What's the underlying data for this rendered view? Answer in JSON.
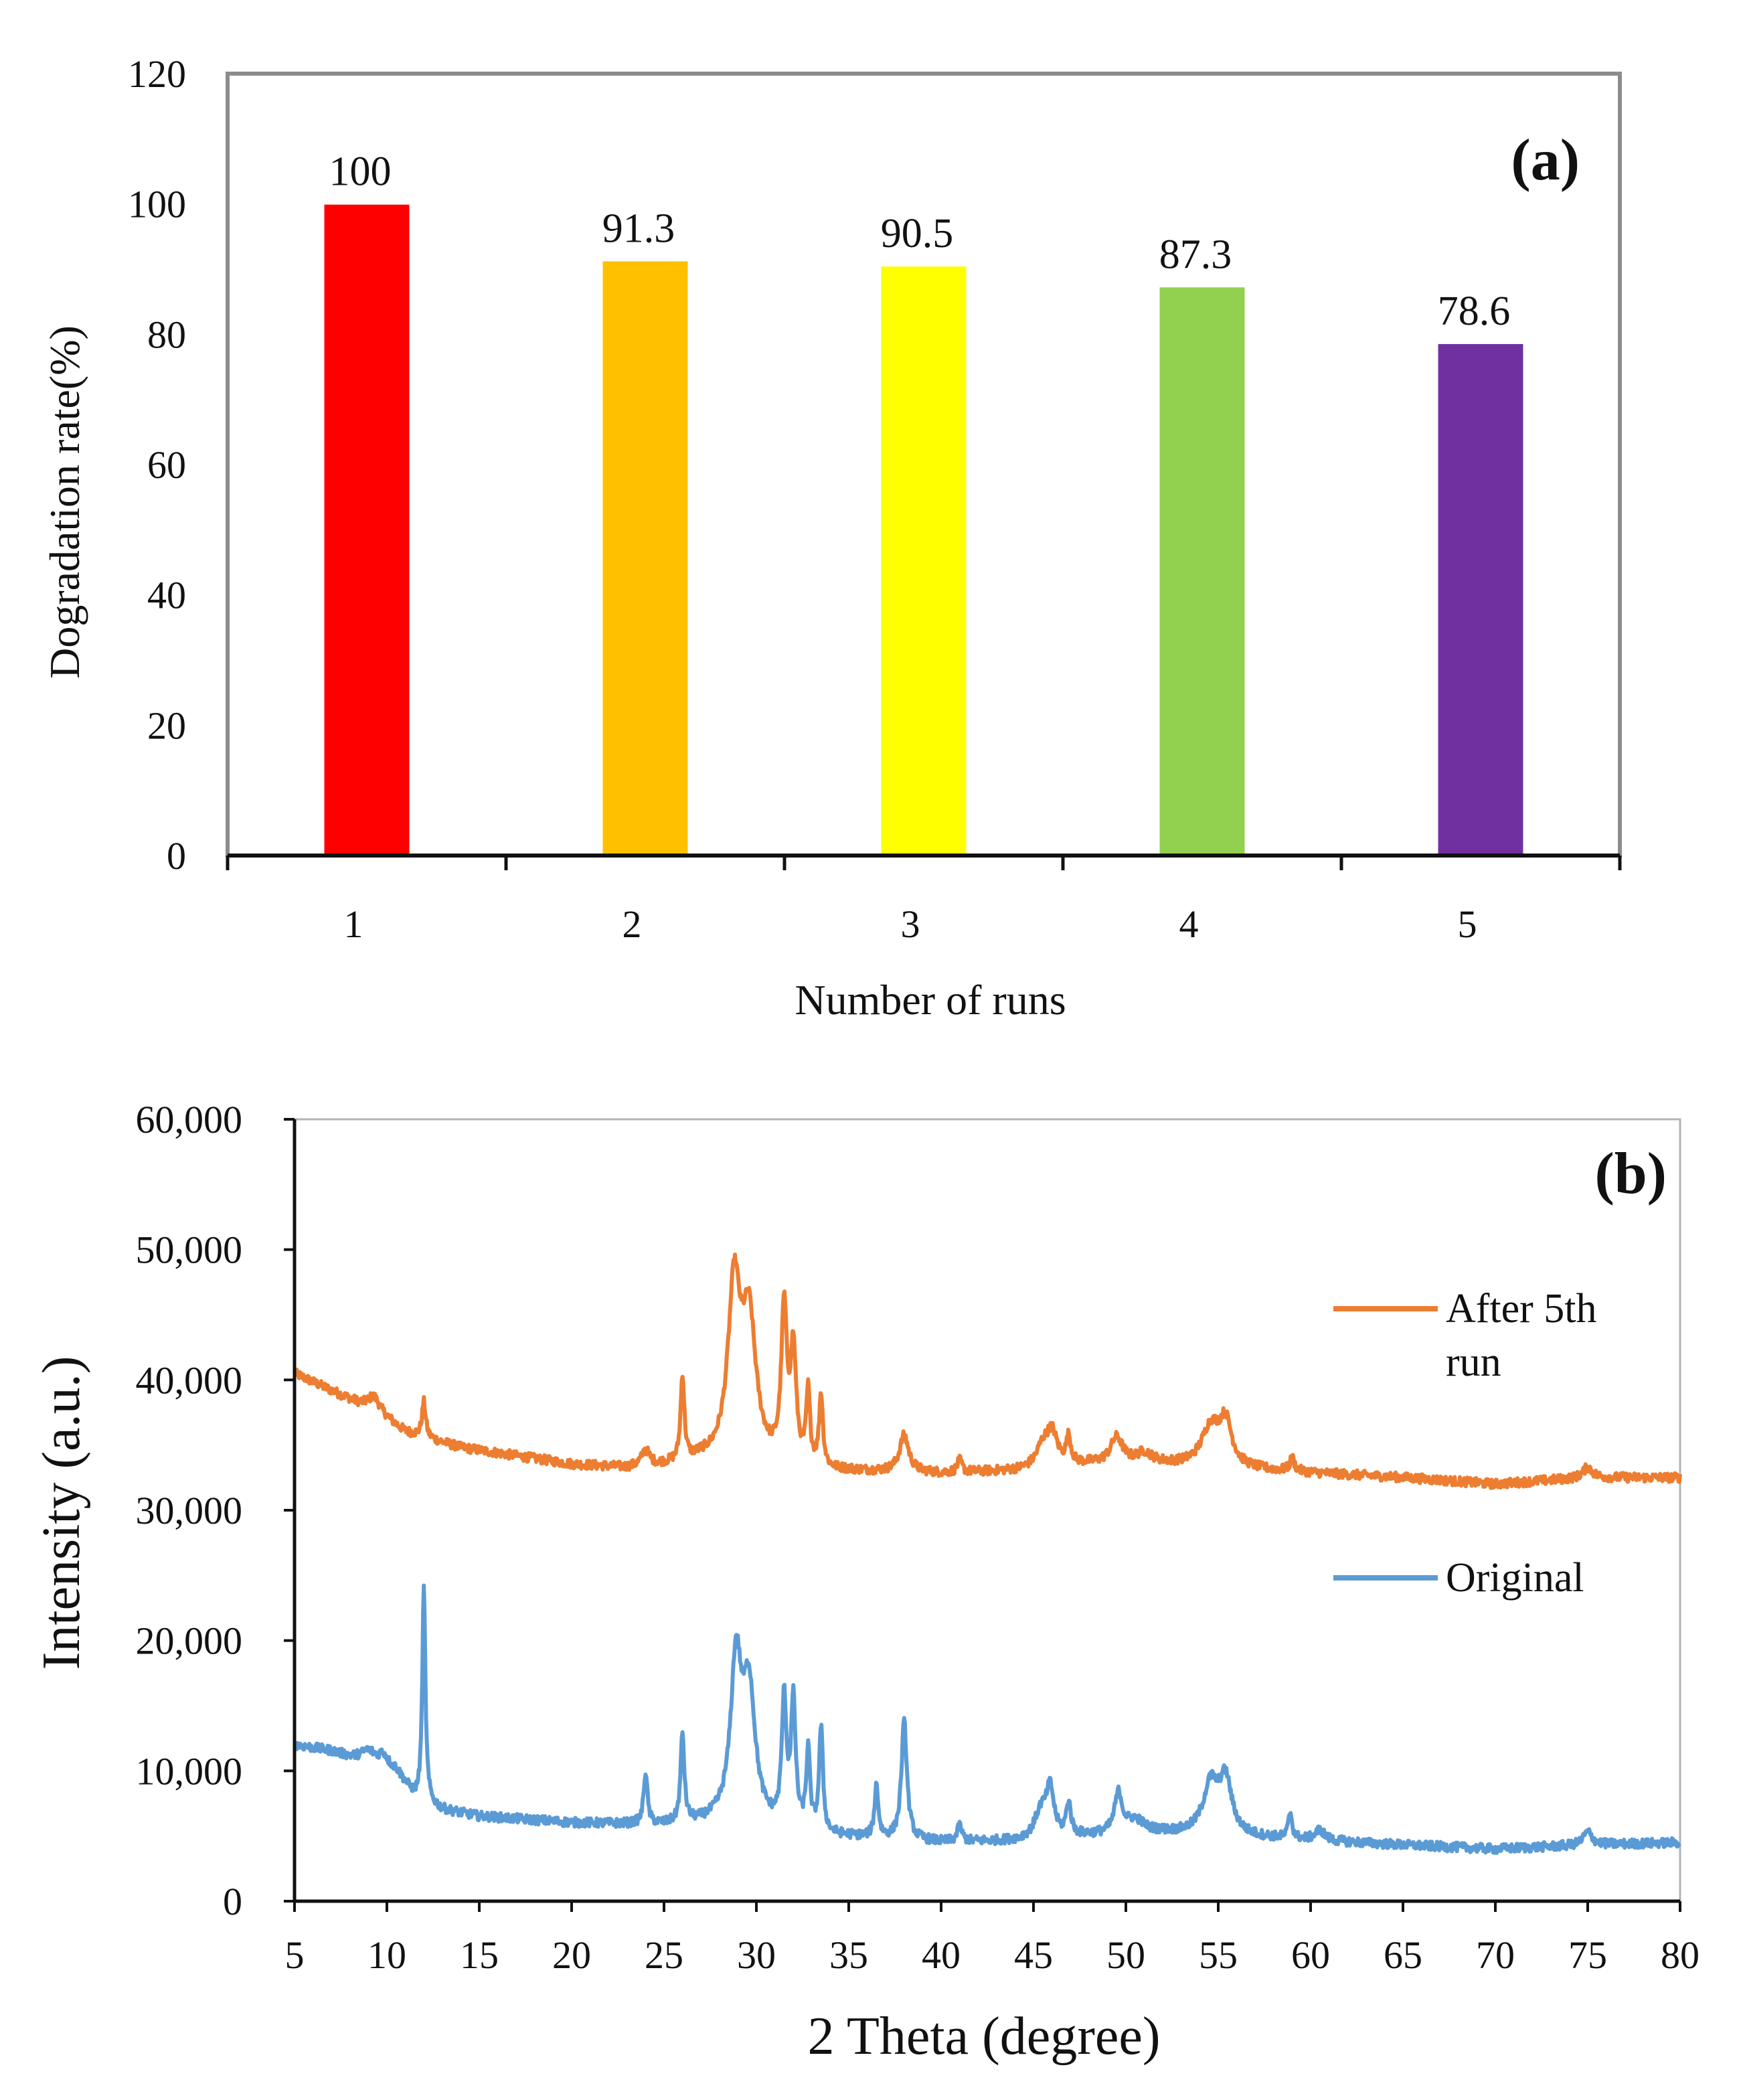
{
  "chart_data": [
    {
      "panel": "(a)",
      "type": "bar",
      "xlabel": "Number of runs",
      "ylabel": "Dogradation rate(%)",
      "categories": [
        "1",
        "2",
        "3",
        "4",
        "5"
      ],
      "values": [
        100,
        91.3,
        90.5,
        87.3,
        78.6
      ],
      "value_labels": [
        "100",
        "91.3",
        "90.5",
        "87.3",
        "78.6"
      ],
      "colors": [
        "#ff0000",
        "#ffc000",
        "#ffff00",
        "#92d050",
        "#7030a0"
      ],
      "ylim": [
        0,
        120
      ],
      "yticks": [
        0,
        20,
        40,
        60,
        80,
        100,
        120
      ],
      "ytick_labels": [
        "0",
        "20",
        "40",
        "60",
        "80",
        "100",
        "120"
      ],
      "grid": false
    },
    {
      "panel": "(b)",
      "type": "line",
      "xlabel": "2 Theta (degree)",
      "ylabel": "Intensity (a.u.)",
      "xlim": [
        5,
        80
      ],
      "ylim": [
        0,
        60000
      ],
      "xticks": [
        5,
        10,
        15,
        20,
        25,
        30,
        35,
        40,
        45,
        50,
        55,
        60,
        65,
        70,
        75,
        80
      ],
      "xtick_labels": [
        "5",
        "10",
        "15",
        "20",
        "25",
        "30",
        "35",
        "40",
        "45",
        "50",
        "55",
        "60",
        "65",
        "70",
        "75",
        "80"
      ],
      "yticks": [
        0,
        10000,
        20000,
        30000,
        40000,
        50000,
        60000
      ],
      "ytick_labels": [
        "0",
        "10,000",
        "20,000",
        "30,000",
        "40,000",
        "50,000",
        "60,000"
      ],
      "legend_position": "right",
      "series": [
        {
          "name": "After 5th run",
          "legend_lines": [
            "After 5th",
            "run"
          ],
          "color": "#ed7d31",
          "baseline": [
            [
              5,
              40500
            ],
            [
              8,
              38500
            ],
            [
              10,
              37000
            ],
            [
              11,
              36000
            ],
            [
              14,
              34800
            ],
            [
              20,
              33500
            ],
            [
              23,
              33200
            ],
            [
              26,
              33500
            ],
            [
              27,
              33800
            ],
            [
              34,
              33000
            ],
            [
              40,
              32800
            ],
            [
              44,
              33000
            ],
            [
              48,
              33500
            ],
            [
              52,
              33500
            ],
            [
              58,
              33000
            ],
            [
              65,
              32500
            ],
            [
              70,
              32000
            ],
            [
              75,
              32500
            ],
            [
              80,
              32500
            ]
          ],
          "peaks": [
            [
              9.3,
              1200,
              0.4
            ],
            [
              12,
              2700,
              0.12
            ],
            [
              24,
              1200,
              0.25
            ],
            [
              26,
              6600,
              0.12
            ],
            [
              28.8,
              13000,
              0.4
            ],
            [
              29.6,
              10500,
              0.45
            ],
            [
              31.5,
              11500,
              0.18
            ],
            [
              32,
              8500,
              0.18
            ],
            [
              32.8,
              5500,
              0.12
            ],
            [
              33.5,
              5500,
              0.12
            ],
            [
              38,
              2800,
              0.3
            ],
            [
              41,
              900,
              0.15
            ],
            [
              45.5,
              1500,
              0.4
            ],
            [
              46,
              2500,
              0.35
            ],
            [
              46.9,
              2000,
              0.15
            ],
            [
              49.5,
              2000,
              0.4
            ],
            [
              51,
              800,
              0.5
            ],
            [
              54.6,
              3000,
              0.6
            ],
            [
              55.4,
              3200,
              0.4
            ],
            [
              59,
              1000,
              0.15
            ],
            [
              75,
              800,
              0.3
            ]
          ],
          "noise": 350
        },
        {
          "name": "Original",
          "legend_lines": [
            "Original"
          ],
          "color": "#5b9bd5",
          "baseline": [
            [
              5,
              12000
            ],
            [
              7,
              11500
            ],
            [
              9,
              10500
            ],
            [
              10.5,
              10000
            ],
            [
              11.5,
              8000
            ],
            [
              13,
              7000
            ],
            [
              15,
              6500
            ],
            [
              20,
              6000
            ],
            [
              25,
              5800
            ],
            [
              28,
              6000
            ],
            [
              34,
              5000
            ],
            [
              40,
              4500
            ],
            [
              44,
              4600
            ],
            [
              48,
              5000
            ],
            [
              52,
              5200
            ],
            [
              58,
              4800
            ],
            [
              65,
              4300
            ],
            [
              70,
              4000
            ],
            [
              75,
              4300
            ],
            [
              80,
              4500
            ]
          ],
          "peaks": [
            [
              9,
              1000,
              0.5
            ],
            [
              9.8,
              900,
              0.3
            ],
            [
              12,
              16300,
              0.1
            ],
            [
              24,
              4000,
              0.12
            ],
            [
              26,
              6800,
              0.12
            ],
            [
              28.9,
              12000,
              0.35
            ],
            [
              29.6,
              10000,
              0.4
            ],
            [
              31.5,
              9500,
              0.15
            ],
            [
              32,
              9500,
              0.15
            ],
            [
              32.8,
              6000,
              0.12
            ],
            [
              33.5,
              8000,
              0.12
            ],
            [
              36.5,
              4000,
              0.12
            ],
            [
              38,
              9000,
              0.18
            ],
            [
              41,
              1200,
              0.15
            ],
            [
              45.4,
              2000,
              0.4
            ],
            [
              45.9,
              3500,
              0.25
            ],
            [
              46.9,
              2500,
              0.15
            ],
            [
              49.6,
              3000,
              0.25
            ],
            [
              50.5,
              1000,
              0.6
            ],
            [
              54.6,
              3800,
              0.5
            ],
            [
              55.4,
              4000,
              0.4
            ],
            [
              58.9,
              2000,
              0.12
            ],
            [
              60.5,
              800,
              0.3
            ],
            [
              75,
              1000,
              0.3
            ]
          ],
          "noise": 350
        }
      ]
    }
  ]
}
